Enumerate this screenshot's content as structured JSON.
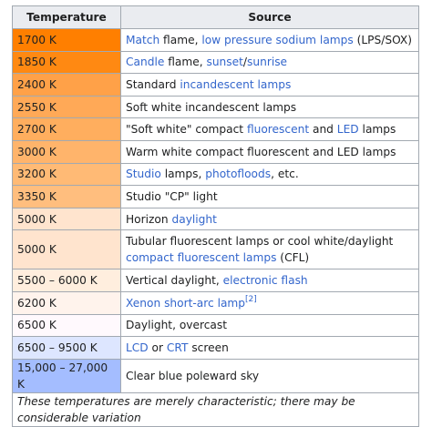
{
  "headers": {
    "temperature": "Temperature",
    "source": "Source"
  },
  "rows": [
    {
      "temp": "1700 K",
      "color": "#ff7f00",
      "source": [
        {
          "t": "Match",
          "link": true
        },
        {
          "t": " flame, "
        },
        {
          "t": "low pressure sodium lamps",
          "link": true
        },
        {
          "t": " (LPS/SOX)"
        }
      ]
    },
    {
      "temp": "1850 K",
      "color": "#ff8912",
      "source": [
        {
          "t": "Candle",
          "link": true
        },
        {
          "t": " flame, "
        },
        {
          "t": "sunset",
          "link": true
        },
        {
          "t": "/"
        },
        {
          "t": "sunrise",
          "link": true
        }
      ]
    },
    {
      "temp": "2400 K",
      "color": "#ffa148",
      "source": [
        {
          "t": "Standard "
        },
        {
          "t": "incandescent lamps",
          "link": true
        }
      ]
    },
    {
      "temp": "2550 K",
      "color": "#ffa957",
      "source": [
        {
          "t": "Soft white incandescent lamps"
        }
      ]
    },
    {
      "temp": "2700 K",
      "color": "#ffae5e",
      "source": [
        {
          "t": "\"Soft white\" compact "
        },
        {
          "t": "fluorescent",
          "link": true
        },
        {
          "t": " and "
        },
        {
          "t": "LED",
          "link": true
        },
        {
          "t": " lamps"
        }
      ]
    },
    {
      "temp": "3000 K",
      "color": "#ffb46b",
      "source": [
        {
          "t": "Warm white compact fluorescent and LED lamps"
        }
      ]
    },
    {
      "temp": "3200 K",
      "color": "#ffba75",
      "source": [
        {
          "t": "Studio",
          "link": true
        },
        {
          "t": " lamps, "
        },
        {
          "t": "photofloods",
          "link": true
        },
        {
          "t": ", etc."
        }
      ]
    },
    {
      "temp": "3350 K",
      "color": "#ffbe7e",
      "source": [
        {
          "t": "Studio \"CP\" light"
        }
      ]
    },
    {
      "temp": "5000 K",
      "color": "#ffe4ce",
      "source": [
        {
          "t": "Horizon "
        },
        {
          "t": "daylight",
          "link": true
        }
      ]
    },
    {
      "temp": "5000 K",
      "color": "#ffe4ce",
      "tall": true,
      "source": [
        {
          "t": "Tubular fluorescent lamps or cool white/daylight "
        },
        {
          "t": "compact fluorescent lamps",
          "link": true
        },
        {
          "t": " (CFL)"
        }
      ]
    },
    {
      "temp": "5500 – 6000 K",
      "color": "#ffeede",
      "source": [
        {
          "t": "Vertical daylight, "
        },
        {
          "t": "electronic flash",
          "link": true
        }
      ]
    },
    {
      "temp": "6200 K",
      "color": "#fff3ec",
      "source": [
        {
          "t": "Xenon short-arc lamp",
          "link": true
        },
        {
          "t": "[2]",
          "link": true,
          "sup": true
        }
      ]
    },
    {
      "temp": "6500 K",
      "color": "#fff9fd",
      "source": [
        {
          "t": "Daylight, overcast"
        }
      ]
    },
    {
      "temp": "6500 – 9500 K",
      "color": "#dde6ff",
      "source": [
        {
          "t": "LCD",
          "link": true
        },
        {
          "t": " or "
        },
        {
          "t": "CRT",
          "link": true
        },
        {
          "t": " screen"
        }
      ]
    },
    {
      "temp": "15,000 – 27,000 K",
      "color": "#a4bdff",
      "source": [
        {
          "t": "Clear blue poleward sky"
        }
      ]
    }
  ],
  "caption": "These temperatures are merely characteristic; there may be considerable variation"
}
